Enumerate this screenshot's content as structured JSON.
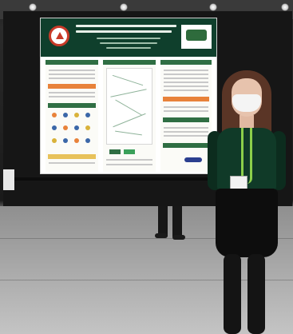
{
  "scene": {
    "description_free": true,
    "colors": {
      "poster_header": "#0f3f2c",
      "poster_accent": "#2f6e43",
      "poster_orange": "#e8823a",
      "top": "#103a28",
      "lanyard": "#8ccf4a",
      "hair": "#5a3526"
    }
  }
}
